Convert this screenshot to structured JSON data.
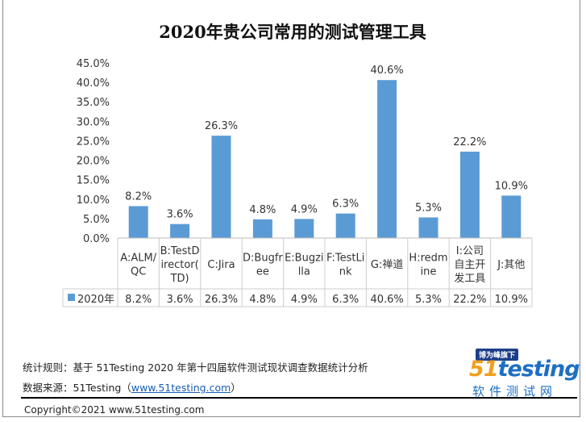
{
  "chart_data": {
    "type": "bar",
    "title": "2020年贵公司常用的测试管理工具",
    "categories": [
      "A:ALM/\nQC",
      "B:TestD\nirector(\nTD)",
      "C:Jira",
      "D:Bugfr\nee",
      "E:Bugzi\nlla",
      "F:TestLi\nnk",
      "G:禅道",
      "H:redm\nine",
      "I:公司\n自主开\n发工具",
      "J:其他"
    ],
    "series": [
      {
        "name": "2020年",
        "values": [
          8.2,
          3.6,
          26.3,
          4.8,
          4.9,
          6.3,
          40.6,
          5.3,
          22.2,
          10.9
        ]
      }
    ],
    "data_labels": [
      "8.2%",
      "3.6%",
      "26.3%",
      "4.8%",
      "4.9%",
      "6.3%",
      "40.6%",
      "5.3%",
      "22.2%",
      "10.9%"
    ],
    "yticks": [
      "0.0%",
      "5.0%",
      "10.0%",
      "15.0%",
      "20.0%",
      "25.0%",
      "30.0%",
      "35.0%",
      "40.0%",
      "45.0%"
    ],
    "ylim": [
      0,
      45
    ],
    "xlabel": "",
    "ylabel": "",
    "legend": "data-table",
    "bar_color": "#5b9bd5"
  },
  "footer": {
    "rule_text": "统计规则：基于 51Testing 2020 年第十四届软件测试现状调查数据统计分析",
    "source_label": "数据来源：51Testing（",
    "source_link": "www.51testing.com",
    "source_close": "）",
    "copyright": "Copyright©2021 www.51testing.com"
  },
  "logo": {
    "badge": "博为峰旗下",
    "brand_a": "51",
    "brand_b": "testing",
    "sub": "软件测试网"
  }
}
